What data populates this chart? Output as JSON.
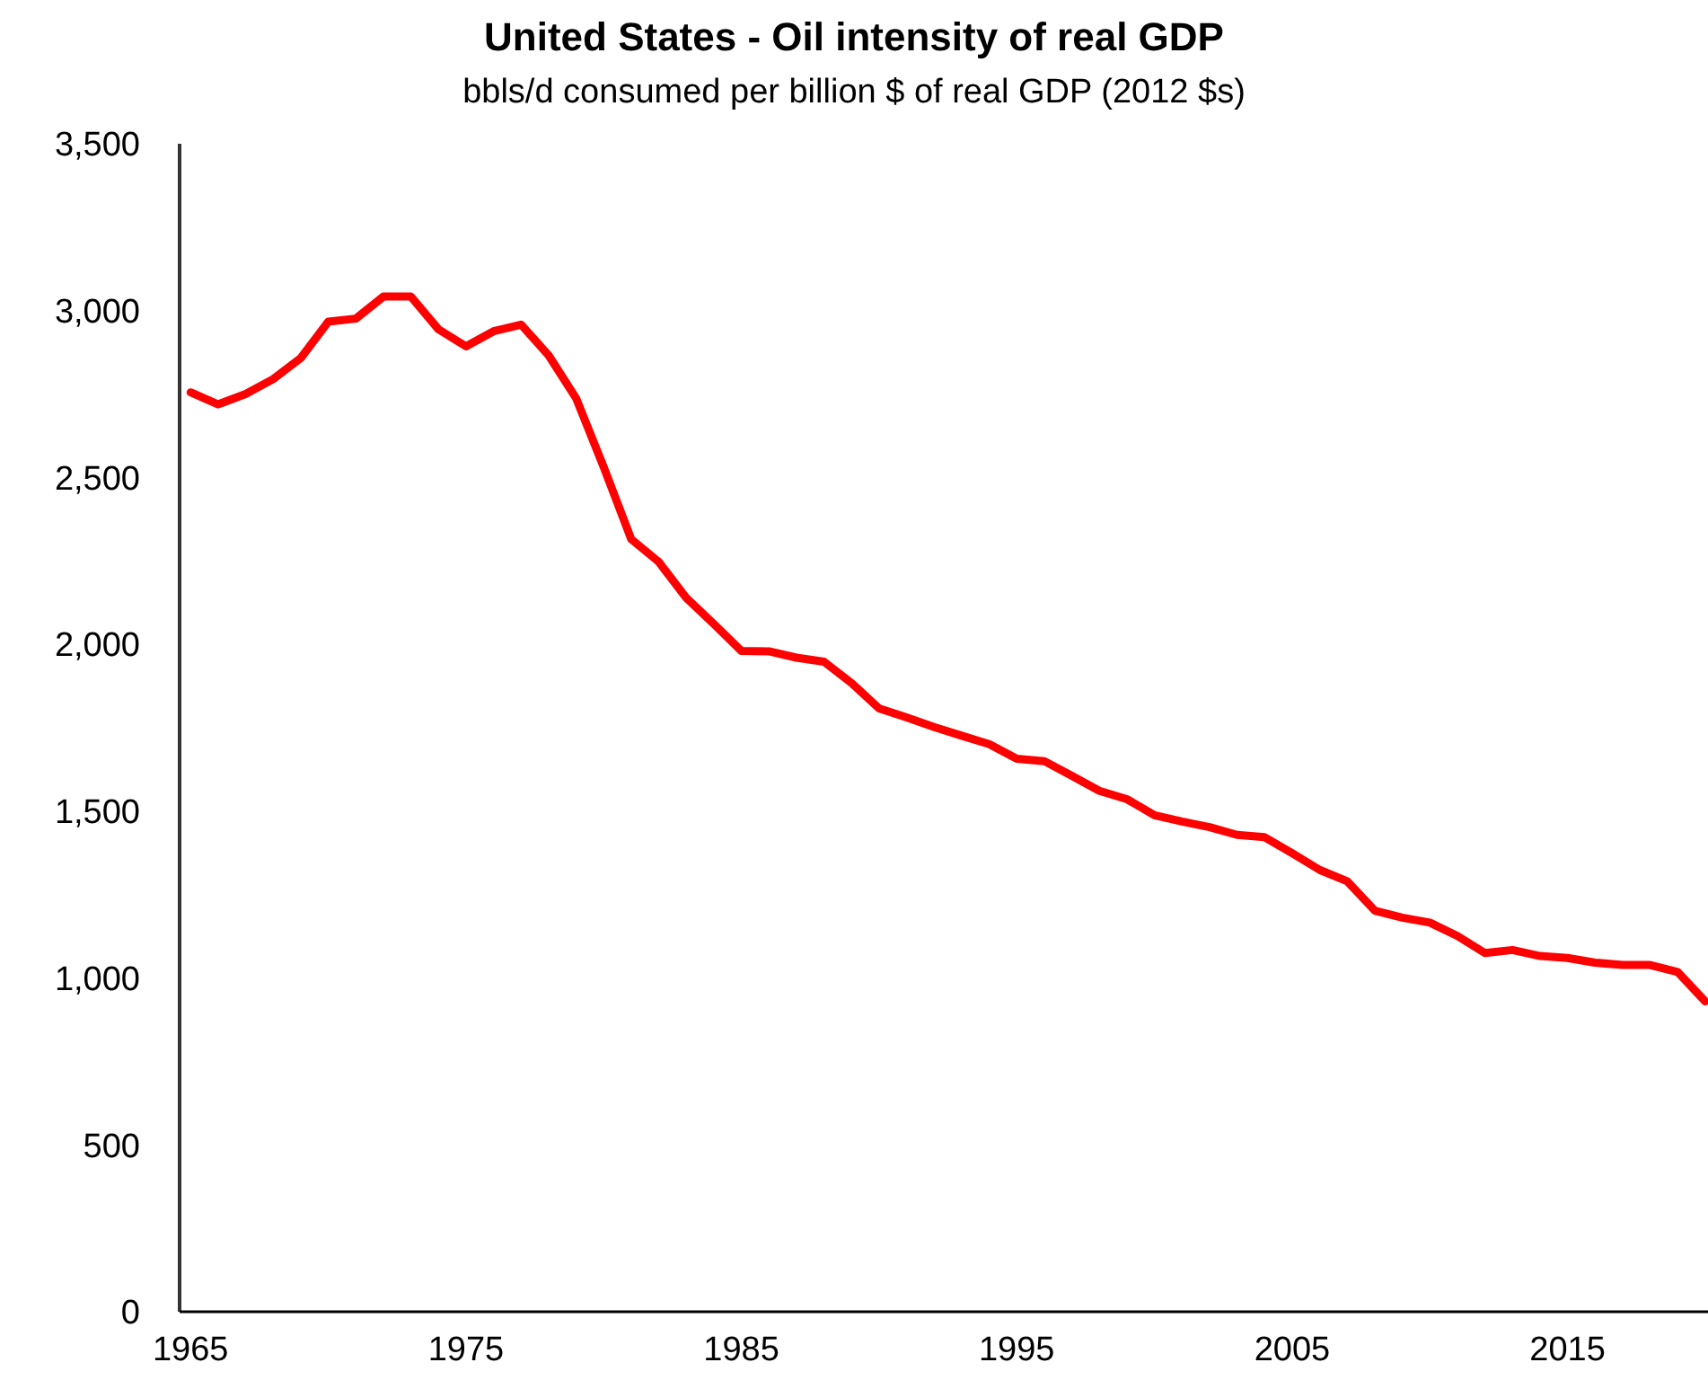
{
  "chart_data": {
    "type": "line",
    "title": "United States - Oil intensity of real GDP",
    "subtitle": "bbls/d consumed per billion $ of real GDP (2012 $s)",
    "x": [
      1965,
      1966,
      1967,
      1968,
      1969,
      1970,
      1971,
      1972,
      1973,
      1974,
      1975,
      1976,
      1977,
      1978,
      1979,
      1980,
      1981,
      1982,
      1983,
      1984,
      1985,
      1986,
      1987,
      1988,
      1989,
      1990,
      1991,
      1992,
      1993,
      1994,
      1995,
      1996,
      1997,
      1998,
      1999,
      2000,
      2001,
      2002,
      2003,
      2004,
      2005,
      2006,
      2007,
      2008,
      2009,
      2010,
      2011,
      2012,
      2013,
      2014,
      2015,
      2016,
      2017,
      2018,
      2019,
      2020
    ],
    "series": [
      {
        "color": "#ff0000",
        "values": [
          2755,
          2719,
          2750,
          2795,
          2858,
          2967,
          2976,
          3042,
          3042,
          2944,
          2893,
          2938,
          2958,
          2866,
          2737,
          2531,
          2315,
          2247,
          2139,
          2061,
          1980,
          1979,
          1960,
          1948,
          1884,
          1808,
          1781,
          1752,
          1726,
          1701,
          1657,
          1650,
          1606,
          1561,
          1536,
          1488,
          1469,
          1452,
          1429,
          1422,
          1374,
          1324,
          1290,
          1202,
          1181,
          1166,
          1126,
          1075,
          1084,
          1066,
          1060,
          1046,
          1039,
          1039,
          1018,
          930
        ]
      }
    ],
    "xlim": [
      1964.6,
      2020.1
    ],
    "xticks": [
      1965,
      1975,
      1985,
      1995,
      2005,
      2015
    ],
    "ylim": [
      0,
      3500
    ],
    "yticks": [
      {
        "value": 0,
        "label": "0"
      },
      {
        "value": 500,
        "label": "500"
      },
      {
        "value": 1000,
        "label": "1,000"
      },
      {
        "value": 1500,
        "label": "1,500"
      },
      {
        "value": 2000,
        "label": "2,000"
      },
      {
        "value": 2500,
        "label": "2,500"
      },
      {
        "value": 3000,
        "label": "3,000"
      },
      {
        "value": 3500,
        "label": "3,500"
      }
    ],
    "grid": false,
    "marker": "none",
    "line_style": "solid"
  }
}
